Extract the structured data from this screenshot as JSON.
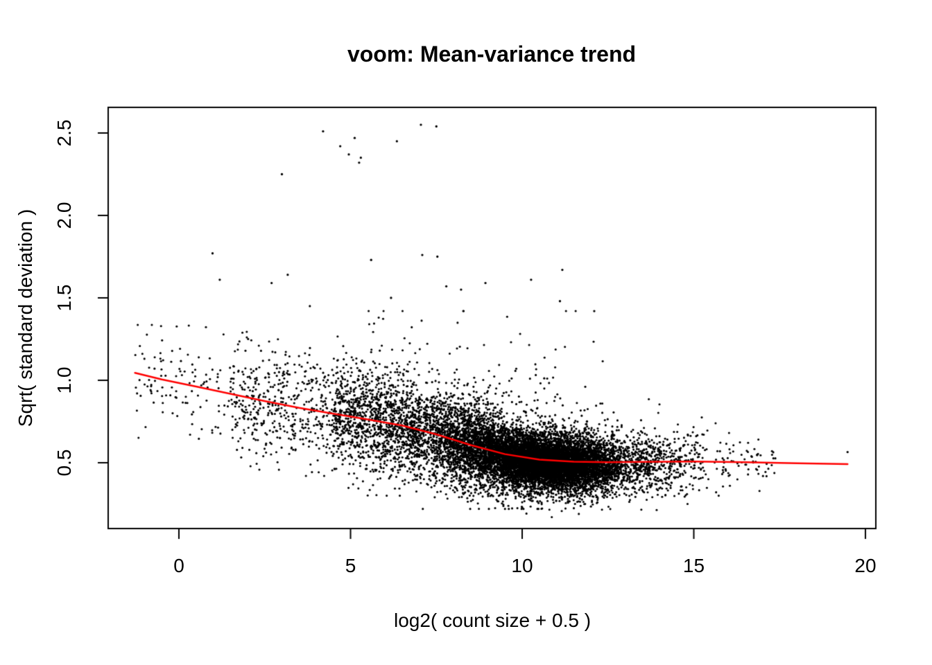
{
  "chart_data": {
    "type": "scatter",
    "title": "voom: Mean-variance trend",
    "xlabel": "log2( count size + 0.5 )",
    "ylabel": "Sqrt( standard deviation )",
    "xlim": [
      -2.06,
      20.36
    ],
    "ylim": [
      0.1,
      2.65
    ],
    "grid": false,
    "legend": "none",
    "point_color": "#000000",
    "trend_color": "#ff0000",
    "background_color": "#ffffff",
    "axis_color": "#000000",
    "x_ticks": [
      {
        "value": 0,
        "label": "0"
      },
      {
        "value": 5,
        "label": "5"
      },
      {
        "value": 10,
        "label": "10"
      },
      {
        "value": 15,
        "label": "15"
      },
      {
        "value": 20,
        "label": "20"
      }
    ],
    "y_ticks": [
      {
        "value": 0.5,
        "label": "0.5"
      },
      {
        "value": 1.0,
        "label": "1.0"
      },
      {
        "value": 1.5,
        "label": "1.5"
      },
      {
        "value": 2.0,
        "label": "2.0"
      },
      {
        "value": 2.5,
        "label": "2.5"
      }
    ],
    "trend_line": {
      "x": [
        -1.28,
        -0.5,
        0.5,
        1.5,
        2.5,
        3.5,
        4.5,
        5.5,
        6.5,
        7.5,
        8.5,
        9.5,
        10.5,
        11.5,
        12.5,
        13.5,
        15.0,
        16.5,
        18.0,
        19.48
      ],
      "y": [
        1.045,
        1.005,
        0.962,
        0.918,
        0.874,
        0.833,
        0.797,
        0.763,
        0.726,
        0.672,
        0.607,
        0.552,
        0.519,
        0.506,
        0.503,
        0.505,
        0.507,
        0.503,
        0.497,
        0.492
      ]
    },
    "outlier_points": [
      [
        3.0,
        2.25
      ],
      [
        4.2,
        2.51
      ],
      [
        4.7,
        2.42
      ],
      [
        4.95,
        2.37
      ],
      [
        5.12,
        2.47
      ],
      [
        5.3,
        2.35
      ],
      [
        5.25,
        2.32
      ],
      [
        6.35,
        2.45
      ],
      [
        7.05,
        2.55
      ],
      [
        7.5,
        2.54
      ],
      [
        0.98,
        1.77
      ],
      [
        1.19,
        1.61
      ],
      [
        2.7,
        1.59
      ],
      [
        3.17,
        1.64
      ],
      [
        5.6,
        1.73
      ],
      [
        6.18,
        1.5
      ],
      [
        7.09,
        1.76
      ],
      [
        7.53,
        1.75
      ],
      [
        7.79,
        1.57
      ],
      [
        8.22,
        1.55
      ],
      [
        8.93,
        1.59
      ],
      [
        10.26,
        1.61
      ],
      [
        11.17,
        1.67
      ],
      [
        11.1,
        1.48
      ],
      [
        12.1,
        1.42
      ],
      [
        19.48,
        0.565
      ]
    ],
    "scatter_model": {
      "seed": 42,
      "point_radius": 1.55,
      "clusters": [
        {
          "name": "left-sparse",
          "n": 110,
          "x_dist": "uniform",
          "x_params": [
            -1.28,
            1.5
          ],
          "y_sd": 0.17,
          "y_offset": 0,
          "y_min": 0.55,
          "y_max": 1.4
        },
        {
          "name": "mid-left",
          "n": 450,
          "x_dist": "uniform",
          "x_params": [
            1.5,
            4.5
          ],
          "y_sd": 0.17,
          "y_offset": -0.01,
          "y_min": 0.42,
          "y_max": 1.45
        },
        {
          "name": "mid",
          "n": 1100,
          "x_dist": "uniform",
          "x_params": [
            4.5,
            7.0
          ],
          "y_sd": 0.16,
          "y_offset": -0.01,
          "y_min": 0.3,
          "y_max": 1.4
        },
        {
          "name": "pre-core",
          "n": 2200,
          "x_dist": "normal",
          "x_params": [
            8.3,
            1.0
          ],
          "x_min": 5.5,
          "x_max": 11.5,
          "y_sd": 0.14,
          "y_offset": -0.01,
          "y_min": 0.22,
          "y_max": 1.35
        },
        {
          "name": "core",
          "n": 6500,
          "x_dist": "normal",
          "x_params": [
            10.8,
            1.3
          ],
          "x_min": 7.0,
          "x_max": 14.6,
          "y_sd": 0.095,
          "y_offset": -0.015,
          "y_min": 0.17,
          "y_max": 1.2
        },
        {
          "name": "core-dense",
          "n": 2500,
          "x_dist": "normal",
          "x_params": [
            10.6,
            0.9
          ],
          "x_min": 8.0,
          "x_max": 13.5,
          "y_sd": 0.06,
          "y_offset": -0.015,
          "y_min": 0.2,
          "y_max": 1.0
        },
        {
          "name": "right-tail",
          "n": 280,
          "x_dist": "uniform",
          "x_params": [
            13.3,
            15.3
          ],
          "y_sd": 0.1,
          "y_offset": 0,
          "y_min": 0.25,
          "y_max": 0.95
        },
        {
          "name": "far-right",
          "n": 80,
          "x_dist": "uniform",
          "x_params": [
            15.3,
            17.4
          ],
          "y_sd": 0.085,
          "y_offset": 0,
          "y_min": 0.3,
          "y_max": 0.85
        },
        {
          "name": "upper-haze",
          "n": 260,
          "x_dist": "normal",
          "x_params": [
            9.0,
            2.4
          ],
          "x_min": 1.5,
          "x_max": 14.0,
          "y_sd": 0.3,
          "y_offset": 0.08,
          "abs_noise": true,
          "y_min": 0.6,
          "y_max": 1.42
        }
      ]
    }
  }
}
